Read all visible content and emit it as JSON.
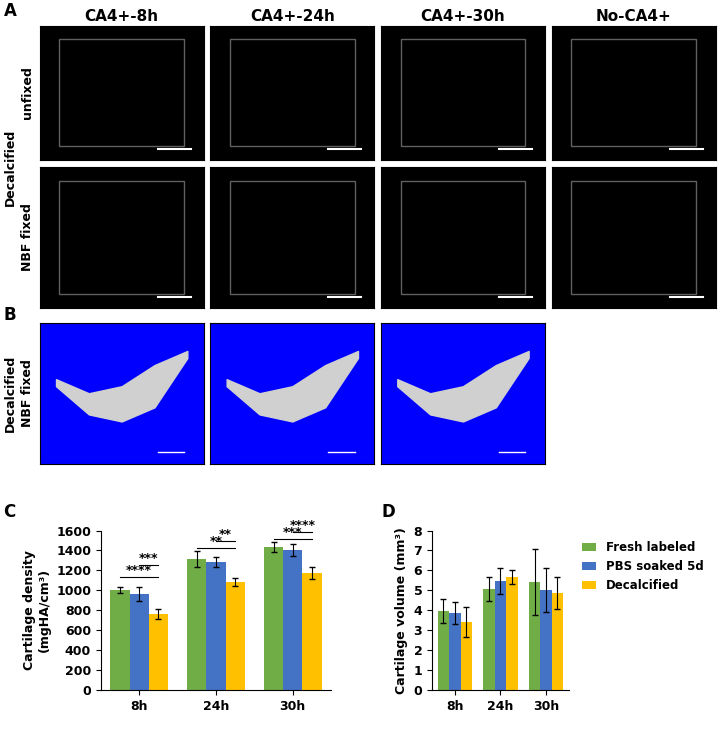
{
  "panels": {
    "A": {
      "letter": "A",
      "columns": [
        "CA4+-8h",
        "CA4+-24h",
        "CA4+-30h",
        "No-CA4+"
      ],
      "group_label": "Decalcified",
      "rows": [
        "unfixed",
        "NBF fixed"
      ]
    },
    "B": {
      "letter": "B",
      "group_label": "Decalcified",
      "row": "NBF fixed"
    }
  },
  "chart_data": [
    {
      "type": "bar",
      "panel_letter": "C",
      "y_label": "Cartilage density\n(mgHA/cm³)",
      "categories": [
        "8h",
        "24h",
        "30h"
      ],
      "series": [
        {
          "name": "Fresh labeled",
          "color": "#70ad47",
          "values": [
            1005,
            1315,
            1435
          ],
          "errors": [
            30,
            80,
            50
          ]
        },
        {
          "name": "PBS soaked 5d",
          "color": "#4472c4",
          "values": [
            965,
            1285,
            1405
          ],
          "errors": [
            70,
            50,
            60
          ]
        },
        {
          "name": "Decalcified",
          "color": "#ffc000",
          "values": [
            765,
            1080,
            1175
          ],
          "errors": [
            50,
            40,
            60
          ]
        }
      ],
      "significance": [
        {
          "category": "8h",
          "from": "Fresh labeled",
          "to": "Decalcified",
          "y": 1130,
          "label": "****"
        },
        {
          "category": "8h",
          "from": "PBS soaked 5d",
          "to": "Decalcified",
          "y": 1250,
          "label": "***"
        },
        {
          "category": "24h",
          "from": "Fresh labeled",
          "to": "Decalcified",
          "y": 1420,
          "label": "**"
        },
        {
          "category": "24h",
          "from": "PBS soaked 5d",
          "to": "Decalcified",
          "y": 1500,
          "label": "**"
        },
        {
          "category": "30h",
          "from": "Fresh labeled",
          "to": "Decalcified",
          "y": 1520,
          "label": "***"
        },
        {
          "category": "30h",
          "from": "PBS soaked 5d",
          "to": "Decalcified",
          "y": 1590,
          "label": "****"
        }
      ],
      "ylim": [
        0,
        1600
      ],
      "yticks": [
        0,
        200,
        400,
        600,
        800,
        1000,
        1200,
        1400,
        1600
      ]
    },
    {
      "type": "bar",
      "panel_letter": "D",
      "y_label": "Cartilage volume (mm³)",
      "categories": [
        "8h",
        "24h",
        "30h"
      ],
      "series": [
        {
          "name": "Fresh labeled",
          "color": "#70ad47",
          "values": [
            3.95,
            5.05,
            5.4
          ],
          "errors": [
            0.6,
            0.6,
            1.65
          ]
        },
        {
          "name": "PBS soaked 5d",
          "color": "#4472c4",
          "values": [
            3.85,
            5.45,
            5.0
          ],
          "errors": [
            0.55,
            0.65,
            1.1
          ]
        },
        {
          "name": "Decalcified",
          "color": "#ffc000",
          "values": [
            3.4,
            5.65,
            4.85
          ],
          "errors": [
            0.75,
            0.35,
            0.8
          ]
        }
      ],
      "ylim": [
        0,
        8
      ],
      "yticks": [
        0,
        1,
        2,
        3,
        4,
        5,
        6,
        7,
        8
      ],
      "legend": "upper left"
    }
  ]
}
